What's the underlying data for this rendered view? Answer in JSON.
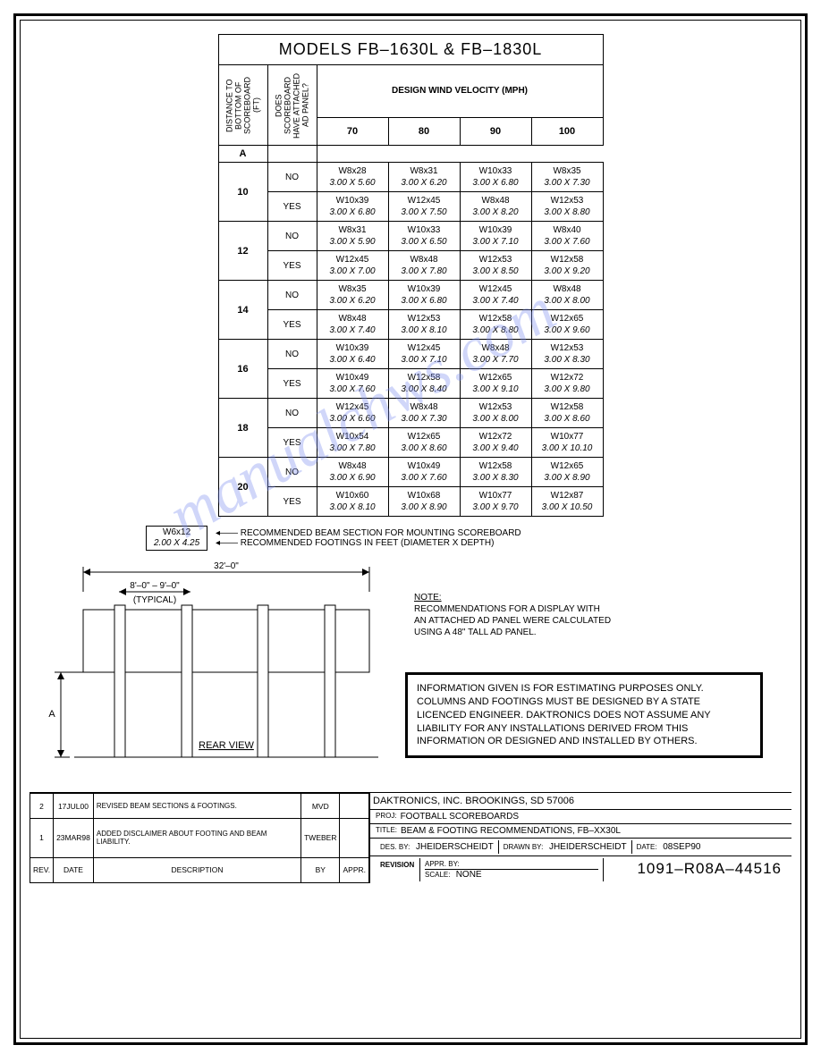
{
  "watermark": "manualchws.com",
  "table": {
    "title": "MODELS FB–1630L & FB–1830L",
    "col1_header": "DISTANCE TO BOTTOM OF SCOREBOARD (FT)",
    "col1_sub": "A",
    "col2_header": "DOES SCOREBOARD HAVE ATTACHED AD PANEL?",
    "wind_header": "DESIGN WIND VELOCITY (MPH)",
    "wind_cols": [
      "70",
      "80",
      "90",
      "100"
    ],
    "rows": [
      {
        "dist": "10",
        "panel": "NO",
        "v": [
          [
            "W8x28",
            "3.00 X 5.60"
          ],
          [
            "W8x31",
            "3.00 X 6.20"
          ],
          [
            "W10x33",
            "3.00 X 6.80"
          ],
          [
            "W8x35",
            "3.00 X 7.30"
          ]
        ]
      },
      {
        "dist": "",
        "panel": "YES",
        "v": [
          [
            "W10x39",
            "3.00 X 6.80"
          ],
          [
            "W12x45",
            "3.00 X 7.50"
          ],
          [
            "W8x48",
            "3.00 X 8.20"
          ],
          [
            "W12x53",
            "3.00 X 8.80"
          ]
        ]
      },
      {
        "dist": "12",
        "panel": "NO",
        "v": [
          [
            "W8x31",
            "3.00 X 5.90"
          ],
          [
            "W10x33",
            "3.00 X 6.50"
          ],
          [
            "W10x39",
            "3.00 X 7.10"
          ],
          [
            "W8x40",
            "3.00 X 7.60"
          ]
        ]
      },
      {
        "dist": "",
        "panel": "YES",
        "v": [
          [
            "W12x45",
            "3.00 X 7.00"
          ],
          [
            "W8x48",
            "3.00 X 7.80"
          ],
          [
            "W12x53",
            "3.00 X 8.50"
          ],
          [
            "W12x58",
            "3.00 X 9.20"
          ]
        ]
      },
      {
        "dist": "14",
        "panel": "NO",
        "v": [
          [
            "W8x35",
            "3.00 X 6.20"
          ],
          [
            "W10x39",
            "3.00 X 6.80"
          ],
          [
            "W12x45",
            "3.00 X 7.40"
          ],
          [
            "W8x48",
            "3.00 X 8.00"
          ]
        ]
      },
      {
        "dist": "",
        "panel": "YES",
        "v": [
          [
            "W8x48",
            "3.00 X 7.40"
          ],
          [
            "W12x53",
            "3.00 X 8.10"
          ],
          [
            "W12x58",
            "3.00 X 8.80"
          ],
          [
            "W12x65",
            "3.00 X 9.60"
          ]
        ]
      },
      {
        "dist": "16",
        "panel": "NO",
        "v": [
          [
            "W10x39",
            "3.00 X 6.40"
          ],
          [
            "W12x45",
            "3.00 X 7.10"
          ],
          [
            "W8x48",
            "3.00 X 7.70"
          ],
          [
            "W12x53",
            "3.00 X 8.30"
          ]
        ]
      },
      {
        "dist": "",
        "panel": "YES",
        "v": [
          [
            "W10x49",
            "3.00 X 7.60"
          ],
          [
            "W12x58",
            "3.00 X 8.40"
          ],
          [
            "W12x65",
            "3.00 X 9.10"
          ],
          [
            "W12x72",
            "3.00 X 9.80"
          ]
        ]
      },
      {
        "dist": "18",
        "panel": "NO",
        "v": [
          [
            "W12x45",
            "3.00 X 6.60"
          ],
          [
            "W8x48",
            "3.00 X 7.30"
          ],
          [
            "W12x53",
            "3.00 X 8.00"
          ],
          [
            "W12x58",
            "3.00 X 8.60"
          ]
        ]
      },
      {
        "dist": "",
        "panel": "YES",
        "v": [
          [
            "W10x54",
            "3.00 X 7.80"
          ],
          [
            "W12x65",
            "3.00 X 8.60"
          ],
          [
            "W12x72",
            "3.00 X 9.40"
          ],
          [
            "W10x77",
            "3.00 X 10.10"
          ]
        ]
      },
      {
        "dist": "20",
        "panel": "NO",
        "v": [
          [
            "W8x48",
            "3.00 X 6.90"
          ],
          [
            "W10x49",
            "3.00 X 7.60"
          ],
          [
            "W12x58",
            "3.00 X 8.30"
          ],
          [
            "W12x65",
            "3.00 X 8.90"
          ]
        ]
      },
      {
        "dist": "",
        "panel": "YES",
        "v": [
          [
            "W10x60",
            "3.00 X 8.10"
          ],
          [
            "W10x68",
            "3.00 X 8.90"
          ],
          [
            "W10x77",
            "3.00 X 9.70"
          ],
          [
            "W12x87",
            "3.00 X 10.50"
          ]
        ]
      }
    ]
  },
  "legend": {
    "beam": "W6x12",
    "footing": "2.00 X 4.25",
    "beam_note": "RECOMMENDED BEAM SECTION FOR MOUNTING SCOREBOARD",
    "footing_note": "RECOMMENDED FOOTINGS IN FEET (DIAMETER X DEPTH)"
  },
  "diagram": {
    "overall": "32'–0\"",
    "spacing": "8'–0\" – 9'–0\"",
    "typical": "(TYPICAL)",
    "view": "REAR VIEW",
    "dim_a": "A"
  },
  "note": {
    "title": "NOTE:",
    "l1": "RECOMMENDATIONS FOR A DISPLAY WITH",
    "l2": "AN ATTACHED AD PANEL WERE CALCULATED",
    "l3": "USING A 48\" TALL AD PANEL."
  },
  "info_box": "INFORMATION GIVEN IS FOR ESTIMATING PURPOSES ONLY.  COLUMNS AND FOOTINGS MUST BE DESIGNED BY A STATE LICENCED ENGINEER.  DAKTRONICS DOES NOT ASSUME ANY LIABILITY FOR ANY INSTALLATIONS DERIVED FROM THIS INFORMATION OR DESIGNED AND INSTALLED BY OTHERS.",
  "revisions": {
    "rows": [
      {
        "n": "2",
        "date": "17JUL00",
        "desc": "REVISED BEAM SECTIONS & FOOTINGS.",
        "by": "MVD",
        "appr": ""
      },
      {
        "n": "1",
        "date": "23MAR98",
        "desc": "ADDED DISCLAIMER ABOUT FOOTING AND BEAM LIABILITY.",
        "by": "TWEBER",
        "appr": ""
      }
    ],
    "h": {
      "rev": "REV.",
      "date": "DATE",
      "desc": "DESCRIPTION",
      "by": "BY",
      "appr": "APPR."
    }
  },
  "titleblock": {
    "company": "DAKTRONICS, INC.  BROOKINGS, SD 57006",
    "proj_l": "PROJ:",
    "proj": "FOOTBALL SCOREBOARDS",
    "title_l": "TITLE:",
    "title": "BEAM & FOOTING RECOMMENDATIONS, FB–XX30L",
    "des_l": "DES. BY:",
    "des": "JHEIDERSCHEIDT",
    "drawn_l": "DRAWN BY:",
    "drawn": "JHEIDERSCHEIDT",
    "date_l": "DATE:",
    "date": "08SEP90",
    "rev_l": "REVISION",
    "appr_l": "APPR. BY:",
    "scale_l": "SCALE:",
    "scale": "NONE",
    "dwg": "1091–R08A–44516"
  }
}
